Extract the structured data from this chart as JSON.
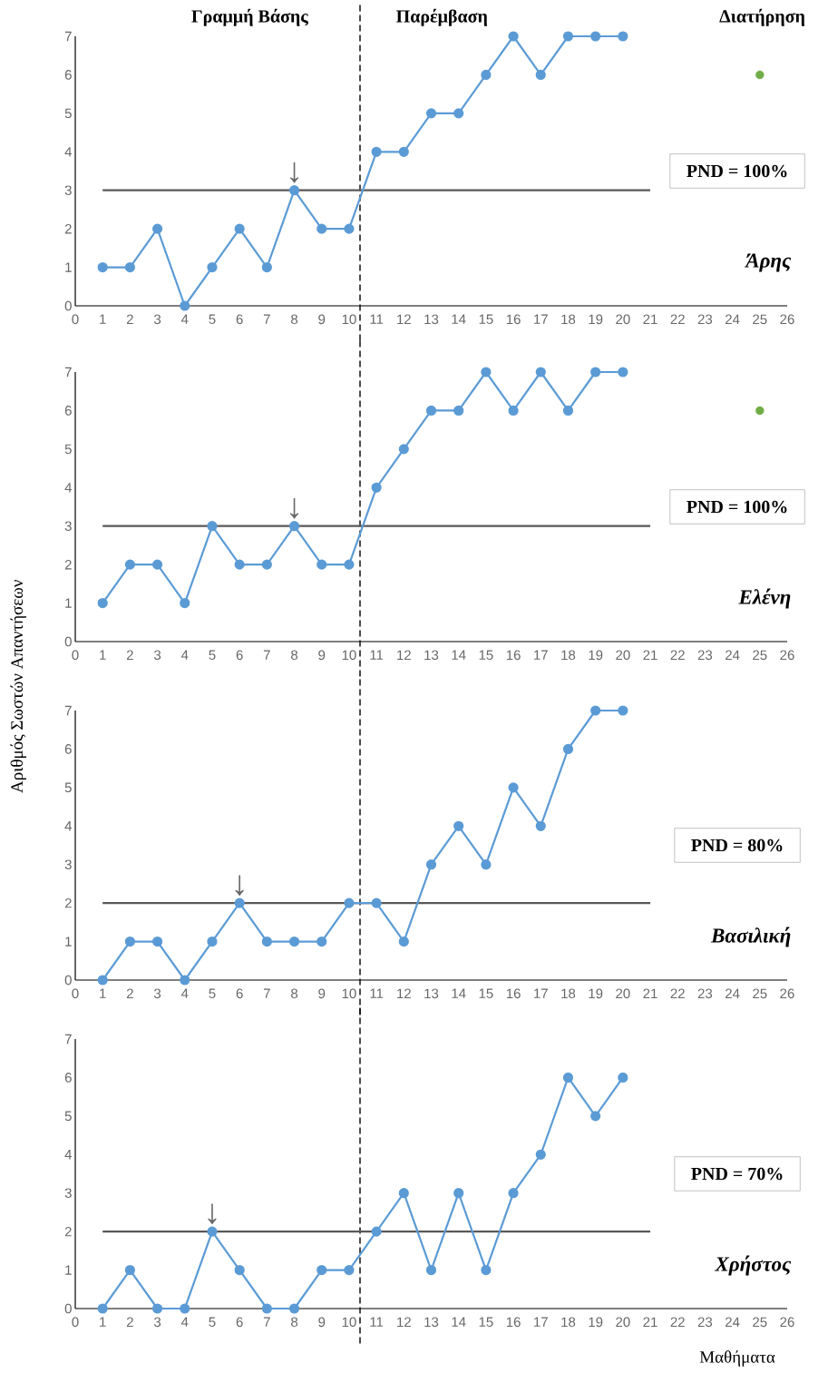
{
  "chart_data": [
    {
      "type": "line",
      "annotations": [
        "Γραμμή Βάσης",
        "Παρέμβαση",
        "Διατήρηση",
        "PND = 100%",
        "Άρης",
        {
          "text": "↓",
          "x": 8,
          "y": 3
        }
      ],
      "series": [
        {
          "color": "#5b9bd5",
          "marker": "circle",
          "x": [
            1,
            2,
            3,
            4,
            5,
            6,
            7,
            8,
            9,
            10,
            11,
            12,
            13,
            14,
            15,
            16,
            17,
            18,
            19,
            20
          ],
          "values": [
            1,
            1,
            2,
            0,
            1,
            2,
            1,
            3,
            2,
            2,
            4,
            4,
            5,
            5,
            6,
            7,
            6,
            7,
            7,
            7
          ]
        },
        {
          "type": "scatter",
          "color": "#70ad47",
          "marker": "circle",
          "x": [
            25
          ],
          "values": [
            6
          ]
        },
        {
          "type": "line",
          "color": "#595959",
          "marker": "none",
          "x": [
            1,
            21
          ],
          "values": [
            3,
            3
          ]
        }
      ],
      "ref_lines": [
        {
          "axis": "x",
          "value": 10.4,
          "color": "#000000",
          "line_style": "dashed"
        }
      ],
      "xlim": [
        0,
        26
      ],
      "xticks": [
        0,
        1,
        2,
        3,
        4,
        5,
        6,
        7,
        8,
        9,
        10,
        11,
        12,
        13,
        14,
        15,
        16,
        17,
        18,
        19,
        20,
        21,
        22,
        23,
        24,
        25,
        26
      ],
      "ylim": [
        0,
        7
      ],
      "yticks": [
        0,
        1,
        2,
        3,
        4,
        5,
        6,
        7
      ],
      "grid": false
    },
    {
      "type": "line",
      "annotations": [
        "PND = 100%",
        "Ελένη",
        {
          "text": "↓",
          "x": 8,
          "y": 3
        }
      ],
      "series": [
        {
          "color": "#5b9bd5",
          "marker": "circle",
          "x": [
            1,
            2,
            3,
            4,
            5,
            6,
            7,
            8,
            9,
            10,
            11,
            12,
            13,
            14,
            15,
            16,
            17,
            18,
            19,
            20
          ],
          "values": [
            1,
            2,
            2,
            1,
            3,
            2,
            2,
            3,
            2,
            2,
            4,
            5,
            6,
            6,
            7,
            6,
            7,
            6,
            7,
            7
          ]
        },
        {
          "type": "scatter",
          "color": "#70ad47",
          "marker": "circle",
          "x": [
            25
          ],
          "values": [
            6
          ]
        },
        {
          "type": "line",
          "color": "#595959",
          "marker": "none",
          "x": [
            1,
            21
          ],
          "values": [
            3,
            3
          ]
        }
      ],
      "ref_lines": [
        {
          "axis": "x",
          "value": 10.4,
          "color": "#000000",
          "line_style": "dashed"
        }
      ],
      "xlim": [
        0,
        26
      ],
      "xticks": [
        0,
        1,
        2,
        3,
        4,
        5,
        6,
        7,
        8,
        9,
        10,
        11,
        12,
        13,
        14,
        15,
        16,
        17,
        18,
        19,
        20,
        21,
        22,
        23,
        24,
        25,
        26
      ],
      "ylim": [
        0,
        7
      ],
      "yticks": [
        0,
        1,
        2,
        3,
        4,
        5,
        6,
        7
      ],
      "grid": false
    },
    {
      "type": "line",
      "ylabel": "Αριθμός Σωστών Απαντήσεων",
      "annotations": [
        "PND = 80%",
        "Βασιλική",
        {
          "text": "↓",
          "x": 6,
          "y": 2
        }
      ],
      "series": [
        {
          "color": "#5b9bd5",
          "marker": "circle",
          "x": [
            1,
            2,
            3,
            4,
            5,
            6,
            7,
            8,
            9,
            10,
            11,
            12,
            13,
            14,
            15,
            16,
            17,
            18,
            19,
            20
          ],
          "values": [
            0,
            1,
            1,
            0,
            1,
            2,
            1,
            1,
            1,
            2,
            2,
            1,
            3,
            4,
            3,
            5,
            4,
            6,
            7,
            7
          ]
        },
        {
          "type": "line",
          "color": "#595959",
          "marker": "none",
          "x": [
            1,
            21
          ],
          "values": [
            2,
            2
          ]
        }
      ],
      "ref_lines": [
        {
          "axis": "x",
          "value": 10.4,
          "color": "#000000",
          "line_style": "dashed"
        }
      ],
      "xlim": [
        0,
        26
      ],
      "xticks": [
        0,
        1,
        2,
        3,
        4,
        5,
        6,
        7,
        8,
        9,
        10,
        11,
        12,
        13,
        14,
        15,
        16,
        17,
        18,
        19,
        20,
        21,
        22,
        23,
        24,
        25,
        26
      ],
      "ylim": [
        0,
        7
      ],
      "yticks": [
        0,
        1,
        2,
        3,
        4,
        5,
        6,
        7
      ],
      "grid": false
    },
    {
      "type": "line",
      "xlabel": "Μαθήματα",
      "annotations": [
        "PND = 70%",
        "Χρήστος",
        {
          "text": "↓",
          "x": 5,
          "y": 2
        }
      ],
      "series": [
        {
          "color": "#5b9bd5",
          "marker": "circle",
          "x": [
            1,
            2,
            3,
            4,
            5,
            6,
            7,
            8,
            9,
            10,
            11,
            12,
            13,
            14,
            15,
            16,
            17,
            18,
            19,
            20
          ],
          "values": [
            0,
            1,
            0,
            0,
            2,
            1,
            0,
            0,
            1,
            1,
            2,
            3,
            1,
            3,
            1,
            3,
            4,
            6,
            5,
            6
          ]
        },
        {
          "type": "line",
          "color": "#595959",
          "marker": "none",
          "x": [
            1,
            21
          ],
          "values": [
            2,
            2
          ]
        }
      ],
      "ref_lines": [
        {
          "axis": "x",
          "value": 10.4,
          "color": "#000000",
          "line_style": "dashed"
        }
      ],
      "xlim": [
        0,
        26
      ],
      "xticks": [
        0,
        1,
        2,
        3,
        4,
        5,
        6,
        7,
        8,
        9,
        10,
        11,
        12,
        13,
        14,
        15,
        16,
        17,
        18,
        19,
        20,
        21,
        22,
        23,
        24,
        25,
        26
      ],
      "ylim": [
        0,
        7
      ],
      "yticks": [
        0,
        1,
        2,
        3,
        4,
        5,
        6,
        7
      ],
      "grid": false
    }
  ]
}
